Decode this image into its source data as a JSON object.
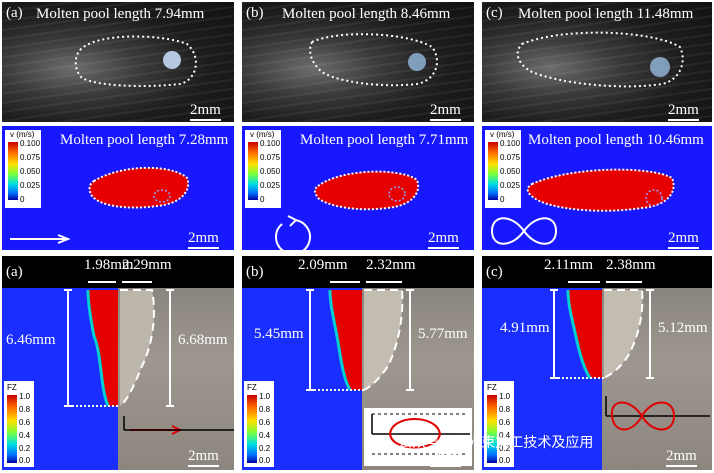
{
  "top_row": [
    {
      "label": "(a)",
      "header": "Molten pool length 7.94mm",
      "scale": "2mm"
    },
    {
      "label": "(b)",
      "header": "Molten pool length 8.46mm",
      "scale": "2mm"
    },
    {
      "label": "(c)",
      "header": "Molten pool length 11.48mm",
      "scale": "2mm"
    }
  ],
  "mid_row": [
    {
      "header": "Molten pool length 7.28mm",
      "scale": "2mm",
      "cbar_title": "v (m/s)",
      "cbar_ticks": [
        "0.100",
        "0.075",
        "0.050",
        "0.025",
        "0"
      ]
    },
    {
      "header": "Molten pool length 7.71mm",
      "scale": "2mm",
      "cbar_title": "v (m/s)",
      "cbar_ticks": [
        "0.100",
        "0.075",
        "0.050",
        "0.025",
        "0"
      ]
    },
    {
      "header": "Molten pool length 10.46mm",
      "scale": "2mm",
      "cbar_title": "v (m/s)",
      "cbar_ticks": [
        "0.100",
        "0.075",
        "0.050",
        "0.025",
        "0"
      ]
    }
  ],
  "bottom_row": [
    {
      "label": "(a)",
      "width_left": "1.98mm",
      "width_right": "2.29mm",
      "depth_left": "6.46mm",
      "depth_right": "6.68mm",
      "scale": "2mm",
      "cbar_title": "FZ",
      "cbar_ticks": [
        "1.0",
        "0.8",
        "0.6",
        "0.4",
        "0.2",
        "0.0"
      ]
    },
    {
      "label": "(b)",
      "width_left": "2.09mm",
      "width_right": "2.32mm",
      "depth_left": "5.45mm",
      "depth_right": "5.77mm",
      "scale": "2mm",
      "cbar_title": "FZ",
      "cbar_ticks": [
        "1.0",
        "0.8",
        "0.6",
        "0.4",
        "0.2",
        "0.0"
      ]
    },
    {
      "label": "(c)",
      "width_left": "2.11mm",
      "width_right": "2.38mm",
      "depth_left": "4.91mm",
      "depth_right": "5.12mm",
      "scale": "2mm",
      "cbar_title": "FZ",
      "cbar_ticks": [
        "1.0",
        "0.8",
        "0.6",
        "0.4",
        "0.2",
        "0.0"
      ]
    }
  ],
  "watermark": "公众号 · 激光束加工技术及应用",
  "colors": {
    "pool_red": "#e60000",
    "sim_blue": "#1818ff",
    "dotted": "#ffffff",
    "arrow_red": "#e00000"
  }
}
